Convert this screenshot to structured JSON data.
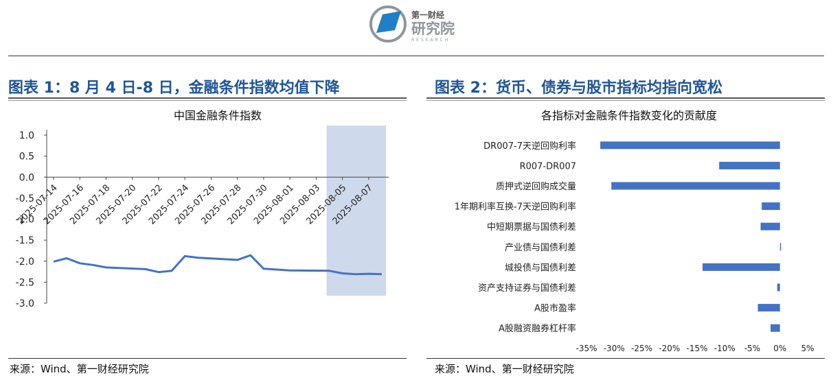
{
  "header": {
    "logo_small": "第一财经",
    "logo_large": "研究院",
    "logo_sub": "RESEARCH"
  },
  "left": {
    "section_title": "图表 1：8 月 4 日-8 日，金融条件指数均值下降",
    "source": "来源：Wind、第一财经研究院"
  },
  "right": {
    "section_title": "图表 2：货币、债券与股市指标均指向宽松",
    "source": "来源：Wind、第一财经研究院"
  },
  "colors": {
    "accent": "#1f5597",
    "line": "#4472c4",
    "bar": "#4472c4",
    "shade": "#cfd9ec"
  },
  "chart_data": [
    {
      "type": "line",
      "title": "中国金融条件指数",
      "x": [
        "2025-07-14",
        "2025-07-15",
        "2025-07-16",
        "2025-07-17",
        "2025-07-18",
        "2025-07-21",
        "2025-07-22",
        "2025-07-23",
        "2025-07-24",
        "2025-07-25",
        "2025-07-28",
        "2025-07-29",
        "2025-07-30",
        "2025-07-31",
        "2025-08-01",
        "2025-08-04",
        "2025-08-05",
        "2025-08-06",
        "2025-08-07",
        "2025-08-08"
      ],
      "x_tick_labels": [
        "2025-07-14",
        "2025-07-16",
        "2025-07-18",
        "2025-07-20",
        "2025-07-22",
        "2025-07-24",
        "2025-07-26",
        "2025-07-28",
        "2025-07-30",
        "2025-08-01",
        "2025-08-03",
        "2025-08-05",
        "2025-08-07"
      ],
      "series": [
        {
          "values": [
            -2.01,
            -1.93,
            -2.05,
            -2.09,
            -2.15,
            -2.19,
            -2.26,
            -2.23,
            -1.88,
            -1.92,
            -1.97,
            -1.86,
            -2.18,
            -2.2,
            -2.22,
            -2.23,
            -2.29,
            -2.31,
            -2.3,
            -2.31
          ]
        }
      ],
      "ylim": [
        -3.0,
        1.0
      ],
      "y_ticks": [
        "1.0",
        "0.5",
        "0.0",
        "-0.5",
        "-1.0",
        "-1.5",
        "-2.0",
        "-2.5",
        "-3.0"
      ],
      "highlight_range": [
        "2025-08-04",
        "2025-08-08"
      ],
      "xlabel": "",
      "ylabel": "",
      "grid": false
    },
    {
      "type": "bar",
      "orientation": "horizontal",
      "title": "各指标对金融条件指数变化的贡献度",
      "categories": [
        "DR007-7天逆回购利率",
        "R007-DR007",
        "质押式逆回购成交量",
        "1年期利率互换-7天逆回购利率",
        "中短期票据与国债利差",
        "产业债与国债利差",
        "城投债与国债利差",
        "资产支持证券与国债利差",
        "A股市盈率",
        "A股融资融券杠杆率"
      ],
      "values": [
        -32.5,
        -11.0,
        -30.5,
        -3.3,
        -3.5,
        0.1,
        -14.0,
        -0.5,
        -4.0,
        -1.7
      ],
      "xlim": [
        -35,
        5
      ],
      "x_ticks": [
        "-35%",
        "-30%",
        "-25%",
        "-20%",
        "-15%",
        "-10%",
        "-5%",
        "0%",
        "5%"
      ],
      "unit": "%",
      "xlabel": "",
      "ylabel": "",
      "grid": false
    }
  ]
}
